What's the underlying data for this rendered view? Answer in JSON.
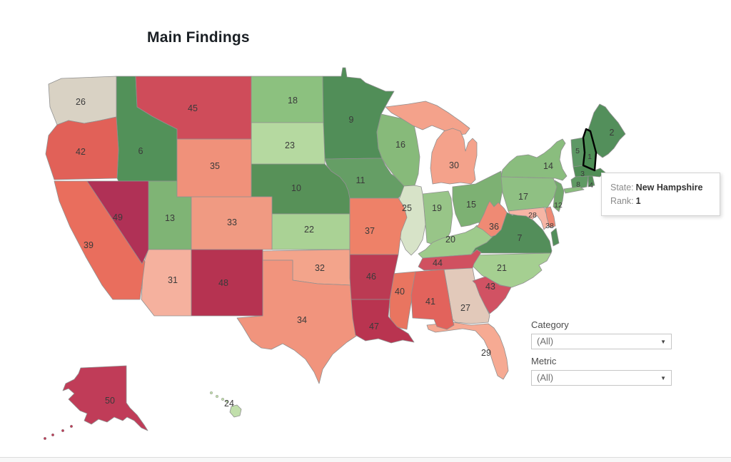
{
  "title": "Main Findings",
  "tooltip": {
    "state_label": "State:",
    "state_value": "New Hampshire",
    "rank_label": "Rank:",
    "rank_value": "1"
  },
  "filters": {
    "category": {
      "label": "Category",
      "value": "(All)"
    },
    "metric": {
      "label": "Metric",
      "value": "(All)"
    }
  },
  "chart_data": {
    "type": "choropleth",
    "title": "Main Findings",
    "region": "United States",
    "value_name": "Rank",
    "value_range": [
      1,
      50
    ],
    "highlighted_state": "New Hampshire",
    "color_scale": {
      "best_rank": "#4d8d55",
      "neutral": "#d9d2c4",
      "worst_rank": "#b03156",
      "description": "diverging green (rank 1, best) to red (rank 50, worst)"
    },
    "series": [
      {
        "state": "New Hampshire",
        "abbr": "NH",
        "rank": 1,
        "color": "#4d8d55"
      },
      {
        "state": "Maine",
        "abbr": "ME",
        "rank": 2,
        "color": "#538f5b"
      },
      {
        "state": "Massachusetts",
        "abbr": "MA",
        "rank": 3,
        "color": "#518e57"
      },
      {
        "state": "Rhode Island",
        "abbr": "RI",
        "rank": 4,
        "color": "#538f58"
      },
      {
        "state": "Vermont",
        "abbr": "VT",
        "rank": 5,
        "color": "#5d9865"
      },
      {
        "state": "Idaho",
        "abbr": "ID",
        "rank": 6,
        "color": "#529159"
      },
      {
        "state": "Virginia",
        "abbr": "VA",
        "rank": 7,
        "color": "#538e5a"
      },
      {
        "state": "Connecticut",
        "abbr": "CT",
        "rank": 8,
        "color": "#5f9a63"
      },
      {
        "state": "Minnesota",
        "abbr": "MN",
        "rank": 9,
        "color": "#518e58"
      },
      {
        "state": "Nebraska",
        "abbr": "NE",
        "rank": 10,
        "color": "#579158"
      },
      {
        "state": "Iowa",
        "abbr": "IA",
        "rank": 11,
        "color": "#659e65"
      },
      {
        "state": "New Jersey",
        "abbr": "NJ",
        "rank": 12,
        "color": "#74a96d"
      },
      {
        "state": "Utah",
        "abbr": "UT",
        "rank": 13,
        "color": "#7fb475"
      },
      {
        "state": "New York",
        "abbr": "NY",
        "rank": 14,
        "color": "#8abd7e"
      },
      {
        "state": "Ohio",
        "abbr": "OH",
        "rank": 15,
        "color": "#7db173"
      },
      {
        "state": "Wisconsin",
        "abbr": "WI",
        "rank": 16,
        "color": "#87ba7a"
      },
      {
        "state": "Pennsylvania",
        "abbr": "PA",
        "rank": 17,
        "color": "#8fc083"
      },
      {
        "state": "North Dakota",
        "abbr": "ND",
        "rank": 18,
        "color": "#8cc17f"
      },
      {
        "state": "Indiana",
        "abbr": "IN",
        "rank": 19,
        "color": "#98c588"
      },
      {
        "state": "Kentucky",
        "abbr": "KY",
        "rank": 20,
        "color": "#9ecb8c"
      },
      {
        "state": "North Carolina",
        "abbr": "NC",
        "rank": 21,
        "color": "#a5cf91"
      },
      {
        "state": "Kansas",
        "abbr": "KS",
        "rank": 22,
        "color": "#aad295"
      },
      {
        "state": "South Dakota",
        "abbr": "SD",
        "rank": 23,
        "color": "#b5d9a0"
      },
      {
        "state": "Hawaii",
        "abbr": "HI",
        "rank": 24,
        "color": "#c1dfab"
      },
      {
        "state": "Illinois",
        "abbr": "IL",
        "rank": 25,
        "color": "#d7e3c8"
      },
      {
        "state": "Washington",
        "abbr": "WA",
        "rank": 26,
        "color": "#d9d2c4"
      },
      {
        "state": "Georgia",
        "abbr": "GA",
        "rank": 27,
        "color": "#e2c9ba"
      },
      {
        "state": "Maryland",
        "abbr": "MD",
        "rank": 28,
        "color": "#f6b5a5"
      },
      {
        "state": "Florida",
        "abbr": "FL",
        "rank": 29,
        "color": "#f6aa93"
      },
      {
        "state": "Michigan",
        "abbr": "MI",
        "rank": 30,
        "color": "#f4a28b"
      },
      {
        "state": "Arizona",
        "abbr": "AZ",
        "rank": 31,
        "color": "#f5b19e"
      },
      {
        "state": "Oklahoma",
        "abbr": "OK",
        "rank": 32,
        "color": "#f3a48b"
      },
      {
        "state": "Colorado",
        "abbr": "CO",
        "rank": 33,
        "color": "#f09a82"
      },
      {
        "state": "Texas",
        "abbr": "TX",
        "rank": 34,
        "color": "#f1947d"
      },
      {
        "state": "Wyoming",
        "abbr": "WY",
        "rank": 35,
        "color": "#f0917a"
      },
      {
        "state": "West Virginia",
        "abbr": "WV",
        "rank": 36,
        "color": "#ef8a74"
      },
      {
        "state": "Missouri",
        "abbr": "MO",
        "rank": 37,
        "color": "#ee8168"
      },
      {
        "state": "Delaware",
        "abbr": "DE",
        "rank": 38,
        "color": "#ef8a75"
      },
      {
        "state": "California",
        "abbr": "CA",
        "rank": 39,
        "color": "#e96e5d"
      },
      {
        "state": "Mississippi",
        "abbr": "MS",
        "rank": 40,
        "color": "#e97560"
      },
      {
        "state": "Alabama",
        "abbr": "AL",
        "rank": 41,
        "color": "#e2635c"
      },
      {
        "state": "Oregon",
        "abbr": "OR",
        "rank": 42,
        "color": "#e16158"
      },
      {
        "state": "South Carolina",
        "abbr": "SC",
        "rank": 43,
        "color": "#d15263"
      },
      {
        "state": "Tennessee",
        "abbr": "TN",
        "rank": 44,
        "color": "#d05160"
      },
      {
        "state": "Montana",
        "abbr": "MT",
        "rank": 45,
        "color": "#cf4c5a"
      },
      {
        "state": "Arkansas",
        "abbr": "AR",
        "rank": 46,
        "color": "#bb3a53"
      },
      {
        "state": "Louisiana",
        "abbr": "LA",
        "rank": 47,
        "color": "#b93450"
      },
      {
        "state": "New Mexico",
        "abbr": "NM",
        "rank": 48,
        "color": "#b63351"
      },
      {
        "state": "Nevada",
        "abbr": "NV",
        "rank": 49,
        "color": "#b03156"
      },
      {
        "state": "Alaska",
        "abbr": "AK",
        "rank": 50,
        "color": "#c03c58"
      }
    ]
  }
}
